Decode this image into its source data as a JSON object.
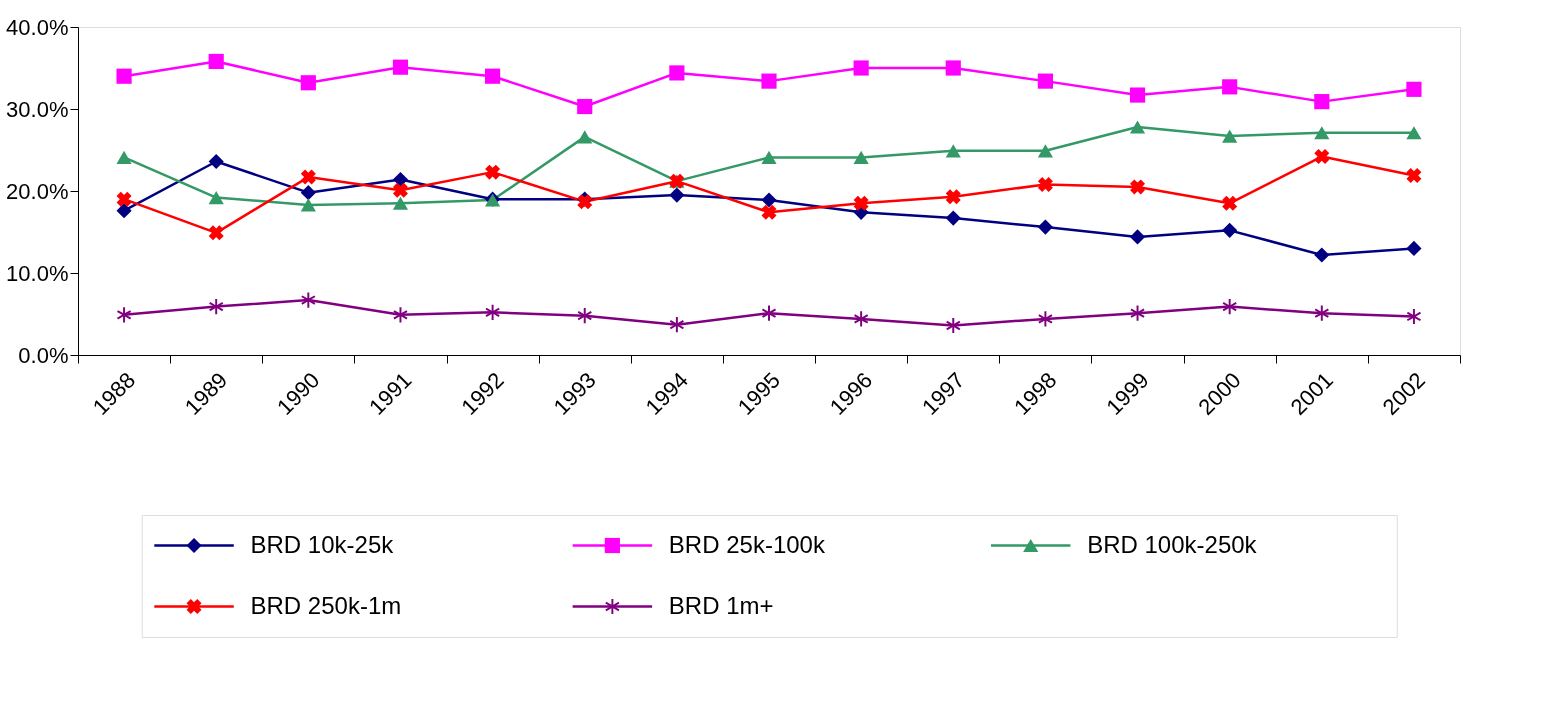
{
  "chart_data": {
    "type": "line",
    "categories": [
      "1988",
      "1989",
      "1990",
      "1991",
      "1992",
      "1993",
      "1994",
      "1995",
      "1996",
      "1997",
      "1998",
      "1999",
      "2000",
      "2001",
      "2002"
    ],
    "ylim": [
      0,
      40
    ],
    "yticks": [
      {
        "value": 0,
        "label": "0.0%"
      },
      {
        "value": 10,
        "label": "10.0%"
      },
      {
        "value": 20,
        "label": "20.0%"
      },
      {
        "value": 30,
        "label": "30.0%"
      },
      {
        "value": 40,
        "label": "40.0%"
      }
    ],
    "grid": false,
    "legend": "bottom",
    "line_style": "solid",
    "series": [
      {
        "name": "BRD 10k-25k",
        "color": "#000080",
        "marker": "diamond",
        "values": [
          17.6,
          23.6,
          19.8,
          21.4,
          19.0,
          19.0,
          19.5,
          18.9,
          17.4,
          16.7,
          15.6,
          14.4,
          15.2,
          12.2,
          13.0
        ]
      },
      {
        "name": "BRD 25k-100k",
        "color": "#ff00ff",
        "marker": "square",
        "values": [
          34.0,
          35.8,
          33.2,
          35.1,
          34.0,
          30.3,
          34.4,
          33.4,
          35.0,
          35.0,
          33.4,
          31.7,
          32.7,
          30.9,
          32.4
        ]
      },
      {
        "name": "BRD 100k-250k",
        "color": "#339966",
        "marker": "triangle",
        "values": [
          24.1,
          19.2,
          18.3,
          18.5,
          18.9,
          26.6,
          21.2,
          24.1,
          24.1,
          24.9,
          24.9,
          27.8,
          26.7,
          27.1,
          27.1
        ]
      },
      {
        "name": "BRD 250k-1m",
        "color": "#ff0000",
        "marker": "cross",
        "values": [
          19.0,
          14.9,
          21.7,
          20.1,
          22.3,
          18.7,
          21.2,
          17.4,
          18.5,
          19.3,
          20.8,
          20.5,
          18.5,
          24.2,
          21.9
        ]
      },
      {
        "name": "BRD 1m+",
        "color": "#800080",
        "marker": "star",
        "values": [
          4.9,
          5.9,
          6.7,
          4.9,
          5.2,
          4.8,
          3.7,
          5.1,
          4.4,
          3.6,
          4.4,
          5.1,
          5.9,
          5.1,
          4.7
        ]
      }
    ]
  }
}
